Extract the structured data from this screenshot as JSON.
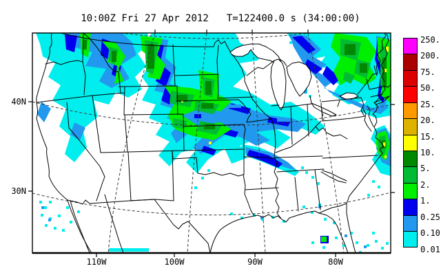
{
  "header": {
    "datetime": "10:00Z Fri 27 Apr 2012",
    "time_label": "T=122400.0 s (34:00:00)"
  },
  "axes": {
    "lat_ticks": [
      "40N",
      "30N"
    ],
    "lon_ticks": [
      "110W",
      "100W",
      "90W",
      "80W"
    ]
  },
  "colorbar": {
    "labels": [
      "250.",
      "200.",
      "75.",
      "50.",
      "25.",
      "20.",
      "15.",
      "10.",
      "5.",
      "2.",
      "1.",
      "0.25",
      "0.10",
      "0.01"
    ],
    "colors_top_to_bottom": [
      "#FF00FF",
      "#AA0000",
      "#DD0000",
      "#FF0000",
      "#FF9900",
      "#DDB300",
      "#FFFF00",
      "#008800",
      "#00BB33",
      "#00EE00",
      "#0000EE",
      "#2299EE",
      "#00EEEE"
    ]
  },
  "chart_data": {
    "type": "heatmap",
    "title": "10:00Z Fri 27 Apr 2012",
    "time_annotation": "T=122400.0 s (34:00:00)",
    "description": "Model precipitation/accumulation shaded field over a CONUS map with state boundaries and dashed lat/lon grid",
    "xlabel_ticks": [
      "110W",
      "100W",
      "90W",
      "80W"
    ],
    "ylabel_ticks": [
      "40N",
      "30N"
    ],
    "grid": true,
    "legend_position": "right-colorbar",
    "colorbar_levels_ascending": [
      0.01,
      0.1,
      0.25,
      1,
      2,
      5,
      10,
      15,
      20,
      25,
      50,
      75,
      200,
      250
    ],
    "colorbar_colors_ascending": [
      "#00EEEE",
      "#2299EE",
      "#0000EE",
      "#00EE00",
      "#00BB33",
      "#008800",
      "#FFFF00",
      "#DDB300",
      "#FF9900",
      "#FF0000",
      "#DD0000",
      "#AA0000",
      "#FF00FF"
    ],
    "palette": {
      "cyan_0.01": "#00EEEE",
      "medblue_0.10": "#2299EE",
      "blue_0.25": "#0000EE",
      "brightgreen_1": "#00EE00",
      "green_2": "#00BB33",
      "darkgreen_5": "#008800",
      "yellow_10": "#FFFF00"
    },
    "shaded_regions": [
      {
        "area": "Pacific Northwest (WA/OR/ID/W-MT)",
        "max_level": "5-10",
        "levels": "cyan-blue with green cores, dark blue spots near coast"
      },
      {
        "area": "Northern Plains (E-MT/ND/SD/WY/NE into MN)",
        "max_level": "10-15",
        "levels": "large cyan/blue mass, multiple green and dark-green cores, tiny yellow dots"
      },
      {
        "area": "Upper Midwest streaks toward IA/MO/TN",
        "max_level": "0.25-1",
        "levels": "diagonal cyan/blue bands"
      },
      {
        "area": "Northeast / New England",
        "max_level": "10-15",
        "levels": "broad cyan/blue with dense green band and small yellow spots near right edge"
      },
      {
        "area": "Atlantic offshore NC/VA",
        "max_level": "10-15",
        "levels": "diagonal cyan-blue-green streak with yellow center"
      },
      {
        "area": "Scattered: SW deserts, Gulf coast, Florida, Bahamas",
        "max_level": "0.10-2",
        "levels": "isolated cyan specks, one green/blue spot on SW Florida"
      }
    ]
  }
}
